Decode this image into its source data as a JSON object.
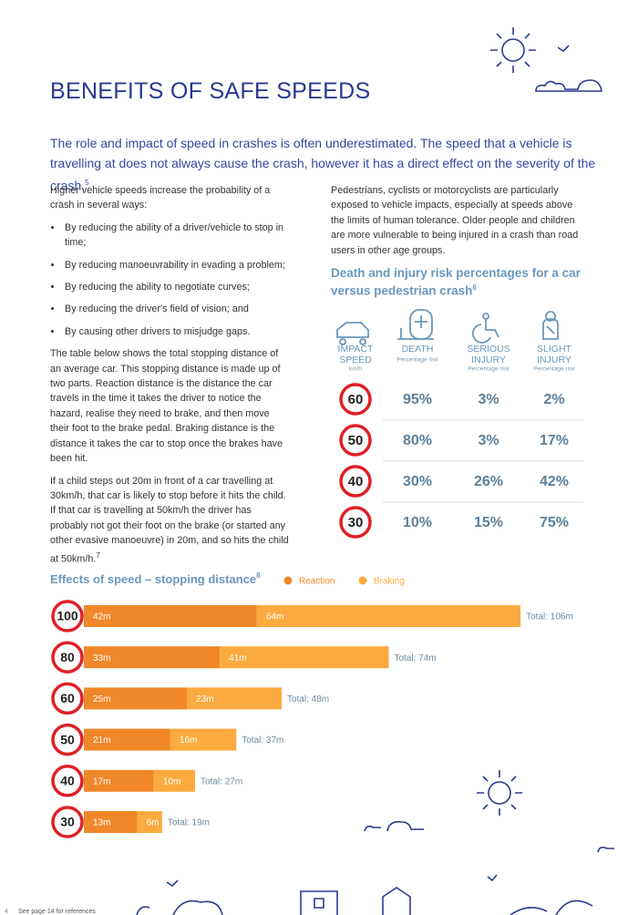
{
  "header": {
    "title": "BENEFITS OF SAFE SPEEDS"
  },
  "intro": {
    "text": "The role and impact of speed in crashes is often underestimated. The speed that a vehicle is travelling at does not always cause the crash, however it has a direct effect on the severity of the crash.",
    "ref": "5"
  },
  "left_column": {
    "paragraph_1": "Higher vehicle speeds increase the probability of a crash in several ways:",
    "bullets": [
      "By reducing the ability of a driver/vehicle to stop in time;",
      "By reducing manoeuvrability in evading a problem;",
      "By reducing the ability to negotiate curves;",
      "By reducing the driver's field of vision; and",
      "By causing other drivers to misjudge gaps."
    ],
    "paragraph_2": "The table below shows the total stopping distance of an average car.  This stopping distance is made up of two parts. Reaction distance is the distance the car travels in the time it takes the driver to notice the hazard, realise they need to brake, and then move their foot to the brake pedal. Braking distance is the distance it takes the car to stop once the brakes have been hit.",
    "paragraph_3": "If a child steps out 20m in front of a car travelling at 30km/h, that car is likely to stop before it hits the child. If that car is travelling at 50km/h the driver has probably not got their foot on the brake (or started any other evasive manoeuvre) in 20m, and so hits the child at 50km/h.",
    "paragraph_3_ref": "7"
  },
  "right_column": {
    "paragraph": "Pedestrians, cyclists or motorcyclists are particularly exposed to vehicle impacts, especially at speeds above the limits of human tolerance. Older people and children are more vulnerable to being injured in a crash than road users in other age groups."
  },
  "risk_table": {
    "title": "Death and injury risk percentages for a car versus pedestrian crash",
    "ref": "6",
    "headers": [
      {
        "label": [
          "IMPACT",
          "SPEED"
        ],
        "sub": "km/h"
      },
      {
        "label": [
          "DEATH"
        ],
        "sub": "Percentage risk"
      },
      {
        "label": [
          "SERIOUS",
          "INJURY"
        ],
        "sub": "Percentage risk"
      },
      {
        "label": [
          "SLIGHT",
          "INJURY"
        ],
        "sub": "Percentage risk"
      }
    ],
    "rows": [
      [
        "60",
        "95%",
        "3%",
        "2%"
      ],
      [
        "50",
        "80%",
        "3%",
        "17%"
      ],
      [
        "40",
        "30%",
        "26%",
        "42%"
      ],
      [
        "30",
        "10%",
        "15%",
        "75%"
      ]
    ]
  },
  "chart_data": {
    "type": "stacked-bar-horizontal",
    "title": "Effects of speed – stopping distance",
    "title_ref": "8",
    "categories": [
      "100",
      "80",
      "60",
      "50",
      "40",
      "30"
    ],
    "series": [
      {
        "name": "Reaction",
        "color": "#f0882a",
        "values": [
          42,
          33,
          25,
          21,
          17,
          13
        ],
        "value_labels": [
          "42m",
          "33m",
          "25m",
          "21m",
          "17m",
          "13m"
        ]
      },
      {
        "name": "Braking",
        "color": "#fbab3e",
        "values": [
          64,
          41,
          23,
          16,
          10,
          6
        ],
        "value_labels": [
          "64m",
          "41m",
          "23m",
          "16m",
          "10m",
          "6m"
        ]
      }
    ],
    "totals": [
      106,
      74,
      48,
      37,
      27,
      19
    ],
    "total_labels": [
      "Total: 106m",
      "Total: 74m",
      "Total: 48m",
      "Total: 37m",
      "Total: 27m",
      "Total: 19m"
    ]
  },
  "footer": {
    "page": "4",
    "note": "See page 14 for references"
  }
}
